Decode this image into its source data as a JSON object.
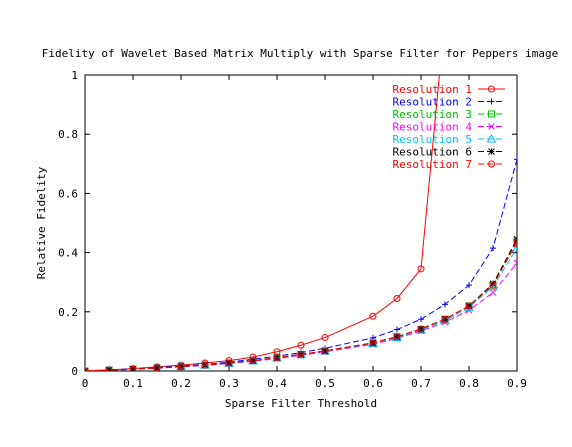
{
  "chart_data": {
    "type": "line",
    "title": "Fidelity of Wavelet Based Matrix Multiply with Sparse Filter for  Peppers image",
    "xlabel": "Sparse Filter Threshold",
    "ylabel": "Relative Fidelity",
    "xlim": [
      0,
      0.9
    ],
    "ylim": [
      0,
      1
    ],
    "xticks": [
      "0",
      "0.1",
      "0.2",
      "0.3",
      "0.4",
      "0.5",
      "0.6",
      "0.7",
      "0.8",
      "0.9"
    ],
    "yticks": [
      "0",
      "0.2",
      "0.4",
      "0.6",
      "0.8",
      "1"
    ],
    "grid": false,
    "legend_position": "top-right",
    "x": [
      0,
      0.05,
      0.1,
      0.15,
      0.2,
      0.25,
      0.3,
      0.35,
      0.4,
      0.45,
      0.5,
      0.6,
      0.65,
      0.7,
      0.75,
      0.8,
      0.85,
      0.9
    ],
    "series": [
      {
        "name": "Resolution 1",
        "color": "#ff0000",
        "line": "solid",
        "marker": "circle",
        "x": [
          0,
          0.05,
          0.1,
          0.15,
          0.2,
          0.25,
          0.3,
          0.35,
          0.4,
          0.45,
          0.5,
          0.6,
          0.65,
          0.7,
          0.75
        ],
        "values": [
          0.0,
          0.004,
          0.008,
          0.014,
          0.02,
          0.027,
          0.035,
          0.047,
          0.065,
          0.087,
          0.113,
          0.185,
          0.245,
          0.345,
          1.2
        ]
      },
      {
        "name": "Resolution 2",
        "color": "#0000ff",
        "line": "dashed",
        "marker": "plus",
        "x": [
          0,
          0.05,
          0.1,
          0.15,
          0.2,
          0.25,
          0.3,
          0.35,
          0.4,
          0.45,
          0.5,
          0.6,
          0.65,
          0.7,
          0.75,
          0.8,
          0.85,
          0.9
        ],
        "values": [
          0.0,
          0.004,
          0.007,
          0.012,
          0.017,
          0.022,
          0.03,
          0.04,
          0.05,
          0.062,
          0.077,
          0.112,
          0.14,
          0.175,
          0.225,
          0.29,
          0.415,
          0.715
        ]
      },
      {
        "name": "Resolution 3",
        "color": "#00c000",
        "line": "dashed",
        "marker": "square",
        "x": [
          0,
          0.05,
          0.1,
          0.15,
          0.2,
          0.25,
          0.3,
          0.35,
          0.4,
          0.45,
          0.5,
          0.6,
          0.65,
          0.7,
          0.75,
          0.8,
          0.85,
          0.9
        ],
        "values": [
          0.0,
          0.003,
          0.006,
          0.01,
          0.015,
          0.02,
          0.027,
          0.035,
          0.045,
          0.056,
          0.068,
          0.095,
          0.115,
          0.14,
          0.175,
          0.22,
          0.29,
          0.44
        ]
      },
      {
        "name": "Resolution 4",
        "color": "#ff00ff",
        "line": "dashed",
        "marker": "cross",
        "x": [
          0,
          0.05,
          0.1,
          0.15,
          0.2,
          0.25,
          0.3,
          0.35,
          0.4,
          0.45,
          0.5,
          0.6,
          0.65,
          0.7,
          0.75,
          0.8,
          0.85,
          0.9
        ],
        "values": [
          0.0,
          0.003,
          0.006,
          0.01,
          0.014,
          0.019,
          0.025,
          0.033,
          0.042,
          0.053,
          0.065,
          0.09,
          0.11,
          0.135,
          0.165,
          0.205,
          0.265,
          0.365
        ]
      },
      {
        "name": "Resolution 5",
        "color": "#00bfff",
        "line": "dashed",
        "marker": "triangle",
        "x": [
          0,
          0.05,
          0.1,
          0.15,
          0.2,
          0.25,
          0.3,
          0.35,
          0.4,
          0.45,
          0.5,
          0.6,
          0.65,
          0.7,
          0.75,
          0.8,
          0.85,
          0.9
        ],
        "values": [
          0.0,
          0.003,
          0.006,
          0.01,
          0.015,
          0.02,
          0.026,
          0.034,
          0.044,
          0.055,
          0.067,
          0.093,
          0.113,
          0.138,
          0.17,
          0.215,
          0.285,
          0.415
        ]
      },
      {
        "name": "Resolution 6",
        "color": "#000000",
        "line": "dashed",
        "marker": "star",
        "x": [
          0,
          0.05,
          0.1,
          0.15,
          0.2,
          0.25,
          0.3,
          0.35,
          0.4,
          0.45,
          0.5,
          0.6,
          0.65,
          0.7,
          0.75,
          0.8,
          0.85,
          0.9
        ],
        "values": [
          0.0,
          0.003,
          0.006,
          0.01,
          0.015,
          0.02,
          0.027,
          0.035,
          0.045,
          0.056,
          0.068,
          0.095,
          0.116,
          0.142,
          0.175,
          0.22,
          0.295,
          0.445
        ]
      },
      {
        "name": "Resolution 7",
        "color": "#ff0000",
        "line": "dashed",
        "marker": "circle",
        "x": [
          0,
          0.05,
          0.1,
          0.15,
          0.2,
          0.25,
          0.3,
          0.35,
          0.4,
          0.45,
          0.5,
          0.6,
          0.65,
          0.7,
          0.75,
          0.8,
          0.85,
          0.9
        ],
        "values": [
          0.0,
          0.003,
          0.006,
          0.01,
          0.015,
          0.02,
          0.027,
          0.035,
          0.045,
          0.056,
          0.068,
          0.095,
          0.116,
          0.142,
          0.175,
          0.22,
          0.29,
          0.435
        ]
      }
    ]
  }
}
